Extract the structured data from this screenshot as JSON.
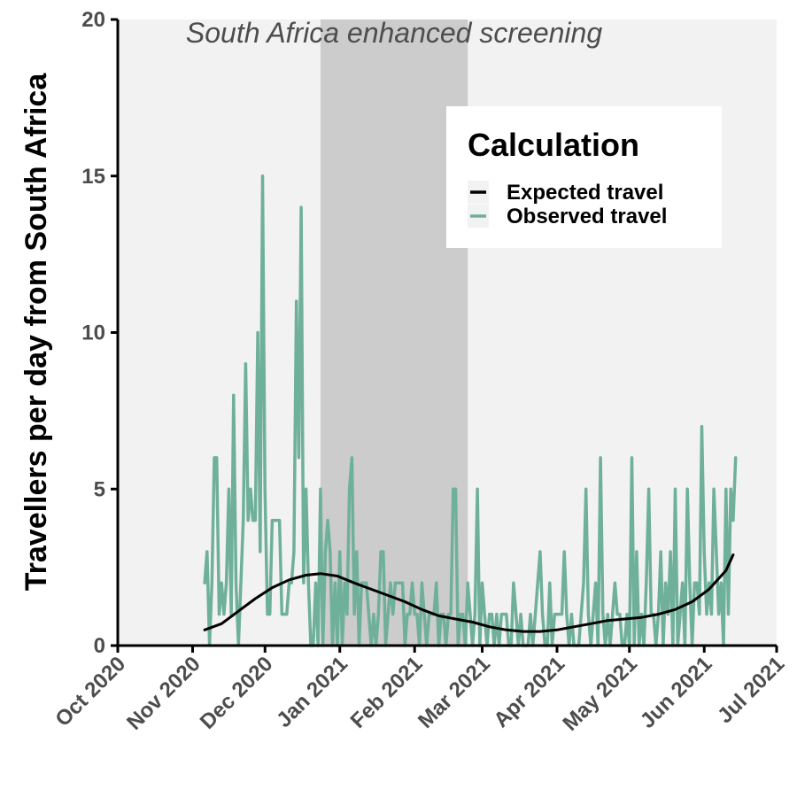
{
  "chart_data": {
    "type": "line",
    "title": "",
    "xlabel": "",
    "ylabel": "Travellers per day from South Africa",
    "xlim": [
      "2020-10-01",
      "2021-07-01"
    ],
    "ylim": [
      0,
      20
    ],
    "grid": false,
    "legend_position": "top-right",
    "background_color": "#f2f2f2",
    "x_ticks": [
      "2020-10-01",
      "2020-11-01",
      "2020-12-01",
      "2021-01-01",
      "2021-02-01",
      "2021-03-01",
      "2021-04-01",
      "2021-05-01",
      "2021-06-01",
      "2021-07-01"
    ],
    "x_tick_labels": [
      "Oct 2020",
      "Nov 2020",
      "Dec 2020",
      "Jan 2021",
      "Feb 2021",
      "Mar 2021",
      "Apr 2021",
      "May 2021",
      "Jun 2021",
      "Jul 2021"
    ],
    "y_ticks": [
      0,
      5,
      10,
      15,
      20
    ],
    "y_tick_labels": [
      "0",
      "5",
      "10",
      "15",
      "20"
    ],
    "shaded_period": {
      "label": "South Africa enhanced screening",
      "start": "2020-12-24",
      "end": "2021-02-23",
      "color": "#cccccc"
    },
    "legend_title": "Calculation",
    "series": [
      {
        "name": "Expected travel",
        "color": "#000000",
        "points": [
          [
            "2020-11-06",
            0.5
          ],
          [
            "2020-11-13",
            0.7
          ],
          [
            "2020-11-20",
            1.1
          ],
          [
            "2020-11-27",
            1.5
          ],
          [
            "2020-12-04",
            1.85
          ],
          [
            "2020-12-11",
            2.1
          ],
          [
            "2020-12-18",
            2.25
          ],
          [
            "2020-12-24",
            2.3
          ],
          [
            "2020-12-31",
            2.22
          ],
          [
            "2021-01-07",
            2.0
          ],
          [
            "2021-01-14",
            1.8
          ],
          [
            "2021-01-21",
            1.6
          ],
          [
            "2021-01-28",
            1.4
          ],
          [
            "2021-02-04",
            1.15
          ],
          [
            "2021-02-11",
            0.95
          ],
          [
            "2021-02-18",
            0.85
          ],
          [
            "2021-02-25",
            0.75
          ],
          [
            "2021-03-04",
            0.6
          ],
          [
            "2021-03-11",
            0.5
          ],
          [
            "2021-03-18",
            0.45
          ],
          [
            "2021-03-25",
            0.45
          ],
          [
            "2021-04-01",
            0.5
          ],
          [
            "2021-04-08",
            0.6
          ],
          [
            "2021-04-15",
            0.7
          ],
          [
            "2021-04-22",
            0.8
          ],
          [
            "2021-04-29",
            0.85
          ],
          [
            "2021-05-06",
            0.9
          ],
          [
            "2021-05-13",
            1.0
          ],
          [
            "2021-05-20",
            1.15
          ],
          [
            "2021-05-27",
            1.4
          ],
          [
            "2021-06-03",
            1.8
          ],
          [
            "2021-06-10",
            2.4
          ],
          [
            "2021-06-13",
            2.9
          ]
        ]
      },
      {
        "name": "Observed travel",
        "color": "#6fb09a",
        "points": [
          [
            "2020-11-06",
            2
          ],
          [
            "2020-11-07",
            3
          ],
          [
            "2020-11-08",
            0
          ],
          [
            "2020-11-09",
            2
          ],
          [
            "2020-11-10",
            6
          ],
          [
            "2020-11-11",
            6
          ],
          [
            "2020-11-12",
            1
          ],
          [
            "2020-11-13",
            2
          ],
          [
            "2020-11-14",
            1
          ],
          [
            "2020-11-15",
            2
          ],
          [
            "2020-11-16",
            5
          ],
          [
            "2020-11-17",
            1
          ],
          [
            "2020-11-18",
            8
          ],
          [
            "2020-11-19",
            2
          ],
          [
            "2020-11-20",
            0
          ],
          [
            "2020-11-21",
            2
          ],
          [
            "2020-11-22",
            4
          ],
          [
            "2020-11-23",
            9
          ],
          [
            "2020-11-24",
            4
          ],
          [
            "2020-11-25",
            5
          ],
          [
            "2020-11-26",
            4
          ],
          [
            "2020-11-27",
            4
          ],
          [
            "2020-11-28",
            10
          ],
          [
            "2020-11-29",
            3
          ],
          [
            "2020-11-30",
            15
          ],
          [
            "2020-12-01",
            5
          ],
          [
            "2020-12-02",
            1
          ],
          [
            "2020-12-03",
            1
          ],
          [
            "2020-12-04",
            4
          ],
          [
            "2020-12-05",
            4
          ],
          [
            "2020-12-06",
            4
          ],
          [
            "2020-12-07",
            4
          ],
          [
            "2020-12-08",
            1
          ],
          [
            "2020-12-09",
            1
          ],
          [
            "2020-12-10",
            1
          ],
          [
            "2020-12-11",
            2
          ],
          [
            "2020-12-12",
            2
          ],
          [
            "2020-12-13",
            3
          ],
          [
            "2020-12-14",
            11
          ],
          [
            "2020-12-15",
            6
          ],
          [
            "2020-12-16",
            14
          ],
          [
            "2020-12-17",
            2
          ],
          [
            "2020-12-18",
            5
          ],
          [
            "2020-12-19",
            2
          ],
          [
            "2020-12-20",
            0
          ],
          [
            "2020-12-21",
            0
          ],
          [
            "2020-12-22",
            2
          ],
          [
            "2020-12-23",
            0
          ],
          [
            "2020-12-24",
            5
          ],
          [
            "2020-12-25",
            0
          ],
          [
            "2020-12-26",
            3
          ],
          [
            "2020-12-27",
            4
          ],
          [
            "2020-12-28",
            3
          ],
          [
            "2020-12-29",
            0
          ],
          [
            "2020-12-30",
            2
          ],
          [
            "2020-12-31",
            0
          ],
          [
            "2021-01-01",
            3
          ],
          [
            "2021-01-02",
            0
          ],
          [
            "2021-01-03",
            2
          ],
          [
            "2021-01-04",
            1
          ],
          [
            "2021-01-05",
            5
          ],
          [
            "2021-01-06",
            6
          ],
          [
            "2021-01-07",
            1
          ],
          [
            "2021-01-08",
            3
          ],
          [
            "2021-01-09",
            0
          ],
          [
            "2021-01-10",
            2
          ],
          [
            "2021-01-11",
            2
          ],
          [
            "2021-01-12",
            2
          ],
          [
            "2021-01-13",
            1
          ],
          [
            "2021-01-14",
            0
          ],
          [
            "2021-01-15",
            1
          ],
          [
            "2021-01-16",
            0
          ],
          [
            "2021-01-17",
            1
          ],
          [
            "2021-01-18",
            3
          ],
          [
            "2021-01-19",
            3
          ],
          [
            "2021-01-20",
            0
          ],
          [
            "2021-01-21",
            1
          ],
          [
            "2021-01-22",
            2
          ],
          [
            "2021-01-23",
            1
          ],
          [
            "2021-01-24",
            2
          ],
          [
            "2021-01-25",
            2
          ],
          [
            "2021-01-26",
            2
          ],
          [
            "2021-01-27",
            2
          ],
          [
            "2021-01-28",
            0
          ],
          [
            "2021-01-29",
            1
          ],
          [
            "2021-01-30",
            1
          ],
          [
            "2021-01-31",
            2
          ],
          [
            "2021-02-01",
            1
          ],
          [
            "2021-02-02",
            1
          ],
          [
            "2021-02-03",
            0
          ],
          [
            "2021-02-04",
            2
          ],
          [
            "2021-02-05",
            1
          ],
          [
            "2021-02-06",
            0
          ],
          [
            "2021-02-07",
            1
          ],
          [
            "2021-02-08",
            1
          ],
          [
            "2021-02-09",
            1
          ],
          [
            "2021-02-10",
            2
          ],
          [
            "2021-02-11",
            0
          ],
          [
            "2021-02-12",
            1
          ],
          [
            "2021-02-13",
            1
          ],
          [
            "2021-02-14",
            0
          ],
          [
            "2021-02-15",
            1
          ],
          [
            "2021-02-16",
            1
          ],
          [
            "2021-02-17",
            5
          ],
          [
            "2021-02-18",
            5
          ],
          [
            "2021-02-19",
            0
          ],
          [
            "2021-02-20",
            1
          ],
          [
            "2021-02-21",
            1
          ],
          [
            "2021-02-22",
            0
          ],
          [
            "2021-02-23",
            2
          ],
          [
            "2021-02-24",
            1
          ],
          [
            "2021-02-25",
            0
          ],
          [
            "2021-02-26",
            1
          ],
          [
            "2021-02-27",
            5
          ],
          [
            "2021-02-28",
            0
          ],
          [
            "2021-03-01",
            2
          ],
          [
            "2021-03-02",
            1
          ],
          [
            "2021-03-03",
            0
          ],
          [
            "2021-03-04",
            1
          ],
          [
            "2021-03-05",
            1
          ],
          [
            "2021-03-06",
            0
          ],
          [
            "2021-03-07",
            1
          ],
          [
            "2021-03-08",
            0
          ],
          [
            "2021-03-09",
            1
          ],
          [
            "2021-03-10",
            1
          ],
          [
            "2021-03-11",
            1
          ],
          [
            "2021-03-12",
            0
          ],
          [
            "2021-03-13",
            0
          ],
          [
            "2021-03-14",
            2
          ],
          [
            "2021-03-15",
            1
          ],
          [
            "2021-03-16",
            0
          ],
          [
            "2021-03-17",
            1
          ],
          [
            "2021-03-18",
            0
          ],
          [
            "2021-03-19",
            0
          ],
          [
            "2021-03-20",
            0
          ],
          [
            "2021-03-21",
            1
          ],
          [
            "2021-03-22",
            0
          ],
          [
            "2021-03-23",
            1
          ],
          [
            "2021-03-24",
            2
          ],
          [
            "2021-03-25",
            3
          ],
          [
            "2021-03-26",
            1
          ],
          [
            "2021-03-27",
            0
          ],
          [
            "2021-03-28",
            0
          ],
          [
            "2021-03-29",
            2
          ],
          [
            "2021-03-30",
            0
          ],
          [
            "2021-03-31",
            1
          ],
          [
            "2021-04-01",
            1
          ],
          [
            "2021-04-02",
            1
          ],
          [
            "2021-04-03",
            1
          ],
          [
            "2021-04-04",
            3
          ],
          [
            "2021-04-05",
            1
          ],
          [
            "2021-04-06",
            0
          ],
          [
            "2021-04-07",
            1
          ],
          [
            "2021-04-08",
            0
          ],
          [
            "2021-04-09",
            0
          ],
          [
            "2021-04-10",
            0
          ],
          [
            "2021-04-11",
            1
          ],
          [
            "2021-04-12",
            2
          ],
          [
            "2021-04-13",
            5
          ],
          [
            "2021-04-14",
            1
          ],
          [
            "2021-04-15",
            0
          ],
          [
            "2021-04-16",
            1
          ],
          [
            "2021-04-17",
            2
          ],
          [
            "2021-04-18",
            0
          ],
          [
            "2021-04-19",
            6
          ],
          [
            "2021-04-20",
            1
          ],
          [
            "2021-04-21",
            0
          ],
          [
            "2021-04-22",
            1
          ],
          [
            "2021-04-23",
            0
          ],
          [
            "2021-04-24",
            1
          ],
          [
            "2021-04-25",
            2
          ],
          [
            "2021-04-26",
            1
          ],
          [
            "2021-04-27",
            1
          ],
          [
            "2021-04-28",
            0
          ],
          [
            "2021-04-29",
            0
          ],
          [
            "2021-04-30",
            1
          ],
          [
            "2021-05-01",
            0
          ],
          [
            "2021-05-02",
            6
          ],
          [
            "2021-05-03",
            0
          ],
          [
            "2021-05-04",
            3
          ],
          [
            "2021-05-05",
            0
          ],
          [
            "2021-05-06",
            1
          ],
          [
            "2021-05-07",
            0
          ],
          [
            "2021-05-08",
            2
          ],
          [
            "2021-05-09",
            5
          ],
          [
            "2021-05-10",
            1
          ],
          [
            "2021-05-11",
            1
          ],
          [
            "2021-05-12",
            0
          ],
          [
            "2021-05-13",
            1
          ],
          [
            "2021-05-14",
            3
          ],
          [
            "2021-05-15",
            0
          ],
          [
            "2021-05-16",
            2
          ],
          [
            "2021-05-17",
            1
          ],
          [
            "2021-05-18",
            3
          ],
          [
            "2021-05-19",
            0
          ],
          [
            "2021-05-20",
            5
          ],
          [
            "2021-05-21",
            0
          ],
          [
            "2021-05-22",
            1
          ],
          [
            "2021-05-23",
            2
          ],
          [
            "2021-05-24",
            0
          ],
          [
            "2021-05-25",
            5
          ],
          [
            "2021-05-26",
            2
          ],
          [
            "2021-05-27",
            0
          ],
          [
            "2021-05-28",
            2
          ],
          [
            "2021-05-29",
            2
          ],
          [
            "2021-05-30",
            1
          ],
          [
            "2021-05-31",
            7
          ],
          [
            "2021-06-01",
            3
          ],
          [
            "2021-06-02",
            1
          ],
          [
            "2021-06-03",
            2
          ],
          [
            "2021-06-04",
            1
          ],
          [
            "2021-06-05",
            5
          ],
          [
            "2021-06-06",
            3
          ],
          [
            "2021-06-07",
            1
          ],
          [
            "2021-06-08",
            2
          ],
          [
            "2021-06-09",
            0
          ],
          [
            "2021-06-10",
            5
          ],
          [
            "2021-06-11",
            1
          ],
          [
            "2021-06-12",
            5
          ],
          [
            "2021-06-13",
            4
          ],
          [
            "2021-06-14",
            6
          ]
        ]
      }
    ]
  }
}
